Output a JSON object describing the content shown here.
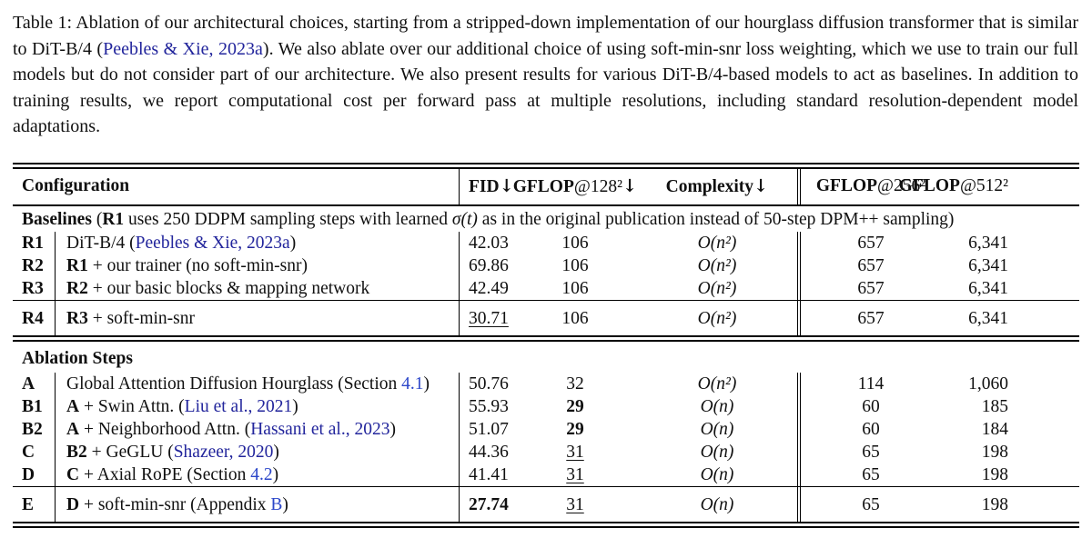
{
  "caption": {
    "pre": "Table 1: Ablation of our architectural choices, starting from a stripped-down implementation of our hourglass diffusion transformer that is similar to DiT-B/4 (",
    "link": "Peebles & Xie, 2023a",
    "post": "). We also ablate over our additional choice of using soft-min-snr loss weighting, which we use to train our full models but do not consider part of our architecture. We also present results for various DiT-B/4-based models to act as baselines. In addition to training results, we report computational cost per forward pass at multiple resolutions, including standard resolution-dependent model adaptations."
  },
  "header": {
    "configuration": "Configuration",
    "fid": {
      "bold": "FID",
      "math": "",
      "arrow": "↓"
    },
    "gflop128": {
      "bold": "GFLOP",
      "math": "@128²",
      "arrow": "↓"
    },
    "complexity": {
      "bold": "Complexity",
      "math": "",
      "arrow": "↓"
    },
    "gflop256": {
      "bold": "GFLOP",
      "math": "@256²",
      "arrow": ""
    },
    "gflop512": {
      "bold": "GFLOP",
      "math": "@512²",
      "arrow": ""
    }
  },
  "sections": {
    "baselines": {
      "bold1": "Baselines",
      "t1": " (",
      "bold2": "R1",
      "t2": " uses 250 DDPM sampling steps with learned ",
      "math": "σ(t)",
      "t3": " as in the original publication instead of 50-step DPM++ sampling)"
    },
    "ablation": {
      "label": "Ablation Steps"
    }
  },
  "rows": [
    {
      "key": "R1",
      "bold": "",
      "pre": "DiT-B/4 (",
      "link": "Peebles & Xie, 2023a",
      "post": ")",
      "fid": "42.03",
      "fid_class": "",
      "g128": "106",
      "g128_class": "",
      "cplx": "O(n²)",
      "g256": "657",
      "g512": "6,341"
    },
    {
      "key": "R2",
      "bold": "R1",
      "pre": " + our trainer (no soft-min-snr)",
      "link": "",
      "post": "",
      "fid": "69.86",
      "fid_class": "",
      "g128": "106",
      "g128_class": "",
      "cplx": "O(n²)",
      "g256": "657",
      "g512": "6,341"
    },
    {
      "key": "R3",
      "bold": "R2",
      "pre": " + our basic blocks & mapping network",
      "link": "",
      "post": "",
      "fid": "42.49",
      "fid_class": "",
      "g128": "106",
      "g128_class": "",
      "cplx": "O(n²)",
      "g256": "657",
      "g512": "6,341"
    },
    {
      "key": "R4",
      "bold": "R3",
      "pre": " + soft-min-snr",
      "link": "",
      "post": "",
      "fid": "30.71",
      "fid_class": "u",
      "g128": "106",
      "g128_class": "",
      "cplx": "O(n²)",
      "g256": "657",
      "g512": "6,341"
    },
    {
      "key": "A",
      "bold": "",
      "pre": "Global Attention Diffusion Hourglass (Section ",
      "link": "4.1",
      "post": ")",
      "fid": "50.76",
      "fid_class": "",
      "g128": "32",
      "g128_class": "",
      "cplx": "O(n²)",
      "g256": "114",
      "g512": "1,060"
    },
    {
      "key": "B1",
      "bold": "A",
      "pre": " + Swin Attn. (",
      "link": "Liu et al., 2021",
      "post": ")",
      "fid": "55.93",
      "fid_class": "",
      "g128": "29",
      "g128_class": "b",
      "cplx": "O(n)",
      "g256": "60",
      "g512": "185"
    },
    {
      "key": "B2",
      "bold": "A",
      "pre": " + Neighborhood Attn. (",
      "link": "Hassani et al., 2023",
      "post": ")",
      "fid": "51.07",
      "fid_class": "",
      "g128": "29",
      "g128_class": "b",
      "cplx": "O(n)",
      "g256": "60",
      "g512": "184"
    },
    {
      "key": "C",
      "bold": "B2",
      "pre": " + GeGLU (",
      "link": "Shazeer, 2020",
      "post": ")",
      "fid": "44.36",
      "fid_class": "",
      "g128": "31",
      "g128_class": "u",
      "cplx": "O(n)",
      "g256": "65",
      "g512": "198"
    },
    {
      "key": "D",
      "bold": "C",
      "pre": " + Axial RoPE (Section ",
      "link": "4.2",
      "post": ")",
      "fid": "41.41",
      "fid_class": "",
      "g128": "31",
      "g128_class": "u",
      "cplx": "O(n)",
      "g256": "65",
      "g512": "198"
    },
    {
      "key": "E",
      "bold": "D",
      "pre": " + soft-min-snr (Appendix ",
      "link": "B",
      "post": ")",
      "fid": "27.74",
      "fid_class": "b",
      "g128": "31",
      "g128_class": "u",
      "cplx": "O(n)",
      "g256": "65",
      "g512": "198"
    }
  ]
}
